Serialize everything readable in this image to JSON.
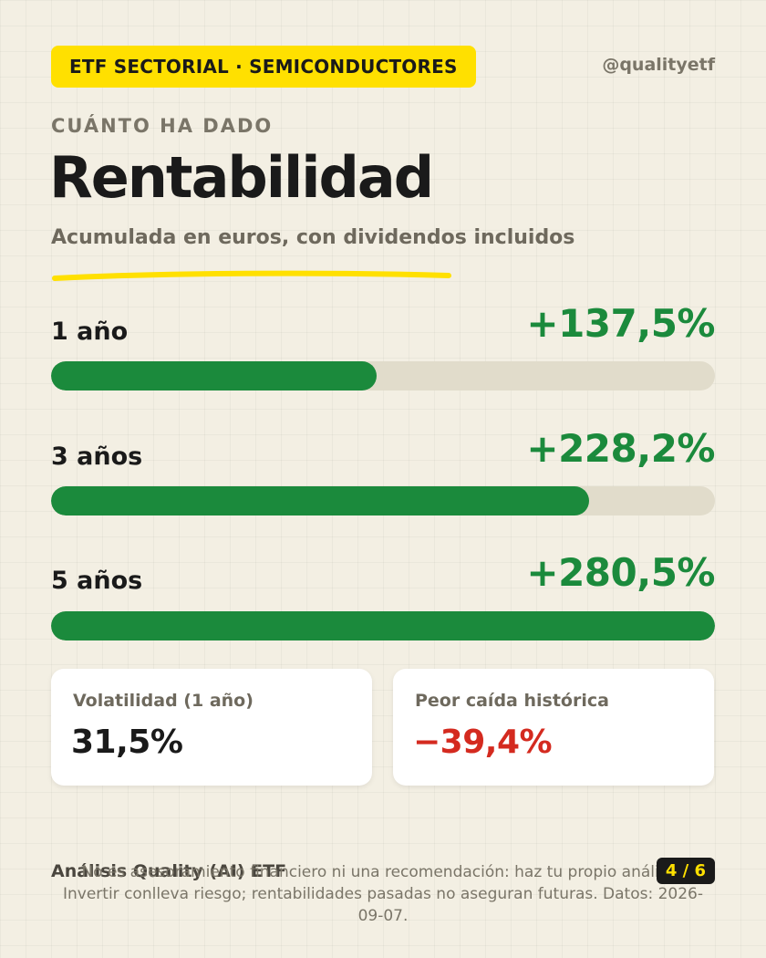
{
  "header": {
    "tag": "ETF SECTORIAL · SEMICONDUCTORES",
    "handle": "@qualityetf"
  },
  "intro": {
    "eyebrow": "CUÁNTO HA DADO",
    "title": "Rentabilidad",
    "subtitle": "Acumulada en euros, con dividendos incluidos"
  },
  "returns": [
    {
      "label": "1 año",
      "value": "+137,5%",
      "fill_fraction": 0.49
    },
    {
      "label": "3 años",
      "value": "+228,2%",
      "fill_fraction": 0.81
    },
    {
      "label": "5 años",
      "value": "+280,5%",
      "fill_fraction": 1.0
    }
  ],
  "stats": [
    {
      "label": "Volatilidad (1 año)",
      "value": "31,5%",
      "color": "#1a1a1a"
    },
    {
      "label": "Peor caída histórica",
      "value": "−39,4%",
      "color": "#d42a1f"
    }
  ],
  "footer": {
    "brand": "Análisis Quality (AI) ETF",
    "disclaimer": "No es asesoramiento financiero ni una recomendación: haz tu propio análisis. Invertir conlleva riesgo; rentabilidades pasadas no aseguran futuras. Datos: 2026-09-07.",
    "page": "4 / 6"
  },
  "colors": {
    "accent_yellow": "#ffe000",
    "positive_green": "#1b8a3c",
    "negative_red": "#d42a1f",
    "background": "#f3efe3"
  }
}
